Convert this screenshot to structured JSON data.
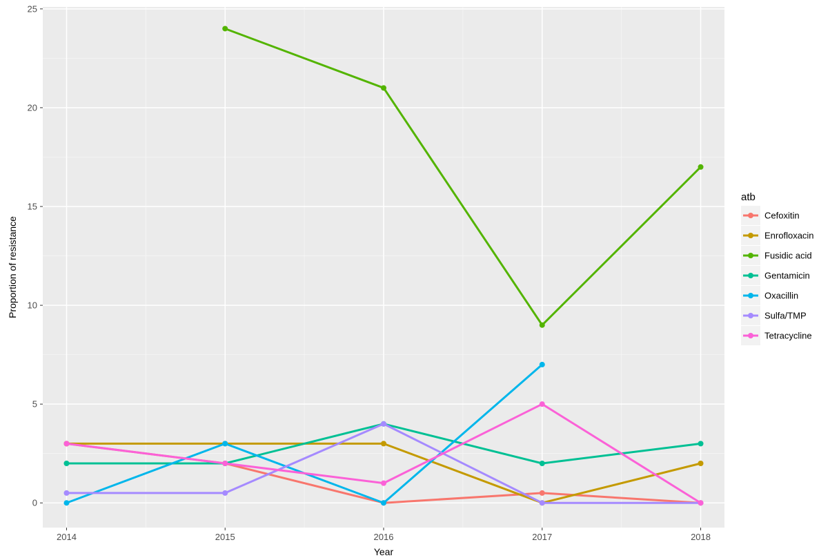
{
  "chart_data": {
    "type": "line",
    "xlabel": "Year",
    "ylabel": "Proportion of resistance",
    "x": [
      2014,
      2015,
      2016,
      2017,
      2018
    ],
    "x_ticks": [
      "2014",
      "2015",
      "2016",
      "2017",
      "2018"
    ],
    "y_ticks": [
      "0",
      "5",
      "10",
      "15",
      "20",
      "25"
    ],
    "xlim": [
      2013.85,
      2018.15
    ],
    "ylim": [
      -1.25,
      25.1
    ],
    "grid": true,
    "legend": {
      "title": "atb",
      "position": "right"
    },
    "series": [
      {
        "name": "Cefoxitin",
        "color": "#F8766D",
        "values": [
          3,
          2,
          0,
          0.5,
          0
        ]
      },
      {
        "name": "Enrofloxacin",
        "color": "#C49A00",
        "values": [
          3,
          3,
          3,
          0,
          2
        ]
      },
      {
        "name": "Fusidic acid",
        "color": "#53B400",
        "values": [
          null,
          24,
          21,
          9,
          17
        ]
      },
      {
        "name": "Gentamicin",
        "color": "#00C094",
        "values": [
          2,
          2,
          4,
          2,
          3
        ]
      },
      {
        "name": "Oxacillin",
        "color": "#00B6EB",
        "values": [
          0,
          3,
          0,
          7,
          null
        ]
      },
      {
        "name": "Sulfa/TMP",
        "color": "#A58AFF",
        "values": [
          0.5,
          0.5,
          4,
          0,
          0
        ]
      },
      {
        "name": "Tetracycline",
        "color": "#FB61D7",
        "values": [
          3,
          2,
          1,
          5,
          0
        ]
      }
    ]
  }
}
